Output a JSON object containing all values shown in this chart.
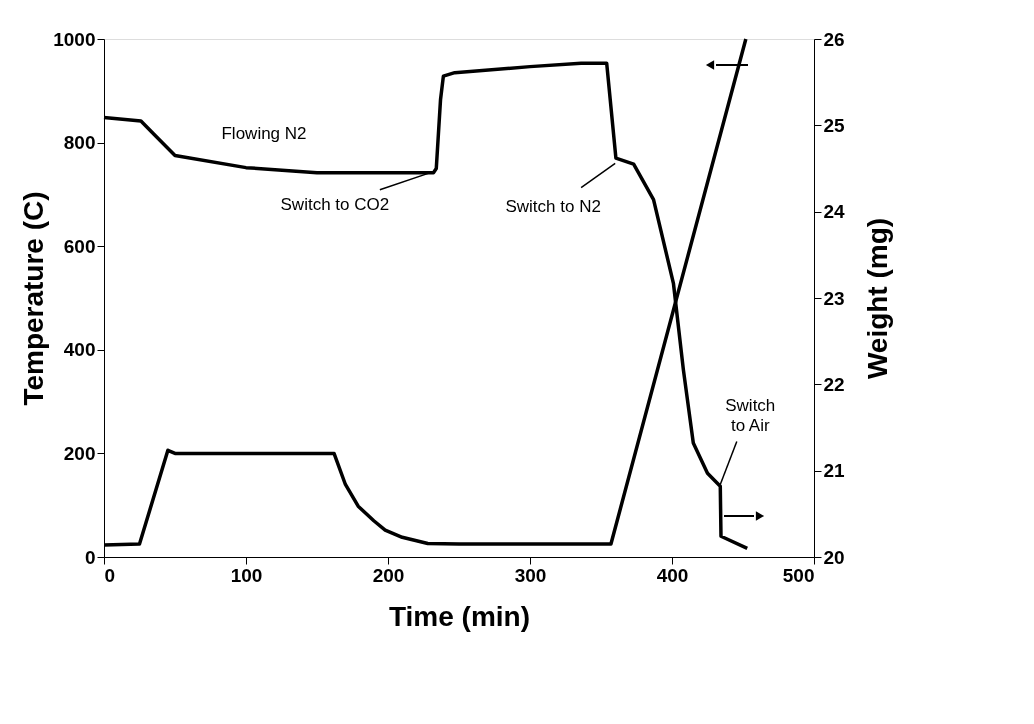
{
  "chart_data": {
    "type": "line",
    "xlabel": "Time (min)",
    "ylabel": "Temperature (C)",
    "y2label": "Weight (mg)",
    "xlim": [
      0,
      500
    ],
    "xticks": [
      0,
      100,
      200,
      300,
      400,
      500
    ],
    "ylim": [
      0,
      1000
    ],
    "yticks": [
      0,
      200,
      400,
      600,
      800,
      1000
    ],
    "y2lim": [
      20,
      26
    ],
    "y2ticks": [
      20,
      21,
      22,
      23,
      24,
      25,
      26
    ],
    "grid": false,
    "line_style": "solid",
    "series": [
      {
        "color": "#000000",
        "x": [
          0,
          25,
          45,
          50,
          100,
          162,
          170,
          179,
          190,
          198,
          210,
          228,
          250,
          300,
          357,
          452
        ],
        "values": [
          23,
          25,
          206,
          200,
          200,
          200,
          140,
          98,
          70,
          52,
          38,
          26,
          25,
          25,
          25,
          1000
        ]
      },
      {
        "color": "#000000",
        "axis": "y2",
        "x": [
          0,
          26,
          35,
          50,
          100,
          150,
          232,
          234,
          237,
          239,
          247,
          300,
          336,
          354,
          360.5,
          373,
          387,
          401,
          408,
          415,
          425,
          434,
          434.5,
          453
        ],
        "values": [
          25.09,
          25.05,
          24.9,
          24.65,
          24.51,
          24.45,
          24.45,
          24.5,
          25.3,
          25.57,
          25.61,
          25.68,
          25.72,
          25.72,
          24.62,
          24.55,
          24.14,
          23.17,
          22.17,
          21.32,
          20.97,
          20.82,
          20.24,
          20.1
        ]
      }
    ],
    "annotations": [
      "Flowing N2",
      {
        "text": "Switch to CO2",
        "x": 233,
        "y": 745
      },
      {
        "text": "Switch to N2",
        "x": 360,
        "y": 760
      },
      {
        "text": "Switch\nto Air",
        "x": 434,
        "y": 140
      }
    ]
  }
}
